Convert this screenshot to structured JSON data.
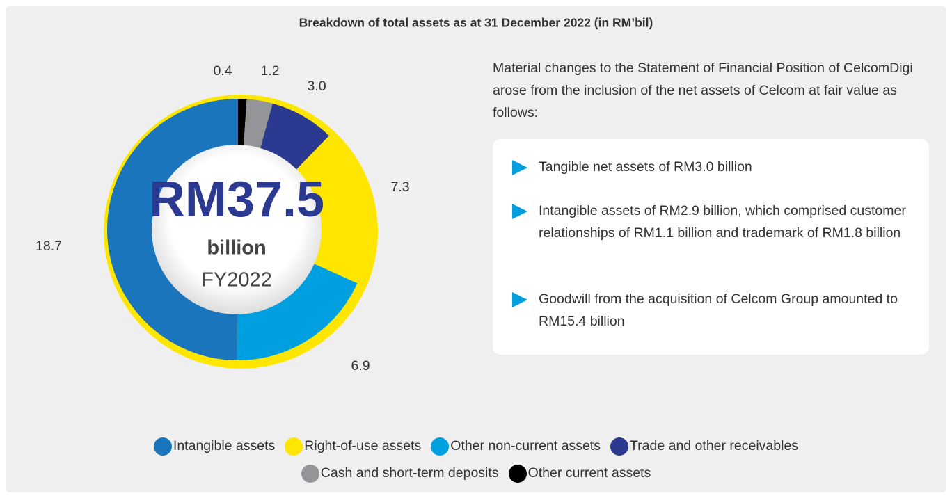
{
  "chart_data": {
    "type": "pie",
    "title": "Breakdown of total assets as at 31 December 2022 (in RM’bil)",
    "categories": [
      "Intangible assets",
      "Right-of-use assets",
      "Other non-current assets",
      "Trade and other receivables",
      "Cash and short-term deposits",
      "Other current assets"
    ],
    "values": [
      18.7,
      7.3,
      6.9,
      3.0,
      1.2,
      0.4
    ],
    "value_labels": [
      "18.7",
      "7.3",
      "6.9",
      "3.0",
      "1.2",
      "0.4"
    ],
    "colors": [
      "#1b75bc",
      "#ffe600",
      "#00a0e0",
      "#2b3990",
      "#939598",
      "#000000"
    ],
    "center": {
      "amount": "RM37.5",
      "unit": "billion",
      "period": "FY2022"
    }
  },
  "notes": {
    "intro": "Material changes to the Statement of Financial Position of CelcomDigi arose from the inclusion of the net assets of Celcom at fair value as follows:",
    "bullets": [
      "Tangible net assets of RM3.0 billion",
      "Intangible assets of RM2.9 billion, which comprised customer relationships of RM1.1 billion and trademark of RM1.8 billion",
      "Goodwill from the acquisition of Celcom Group amounted to RM15.4 billion"
    ]
  }
}
